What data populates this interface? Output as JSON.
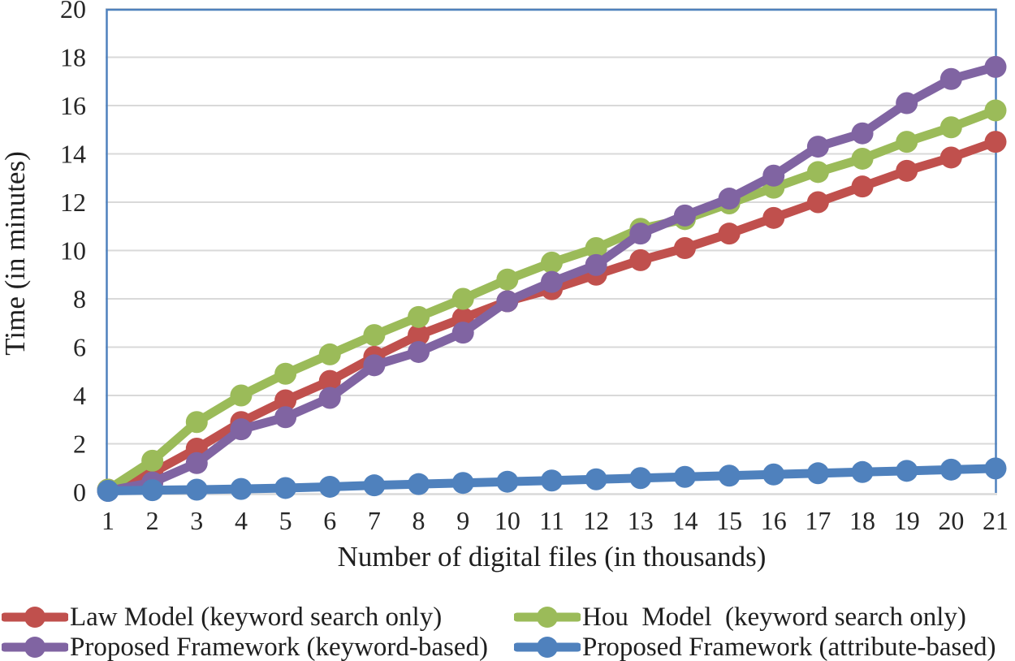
{
  "chart_data": {
    "type": "line",
    "title": "",
    "xlabel": "Number of digital files (in thousands)",
    "ylabel": "Time (in minutes)",
    "x": [
      1,
      2,
      3,
      4,
      5,
      6,
      7,
      8,
      9,
      10,
      11,
      12,
      13,
      14,
      15,
      16,
      17,
      18,
      19,
      20,
      21
    ],
    "ylim": [
      0,
      20
    ],
    "ytick_step": 2,
    "grid": true,
    "legend_position": "bottom",
    "series": [
      {
        "name": "Law Model (keyword search only)",
        "color": "#C0504D",
        "values": [
          0.1,
          0.8,
          1.8,
          2.9,
          3.8,
          4.6,
          5.6,
          6.5,
          7.2,
          7.9,
          8.4,
          9.0,
          9.6,
          10.1,
          10.7,
          11.35,
          12.0,
          12.65,
          13.3,
          13.85,
          14.5
        ]
      },
      {
        "name": "Hou  Model  (keyword search only)",
        "color": "#9BBB59",
        "values": [
          0.1,
          1.3,
          2.9,
          4.0,
          4.9,
          5.7,
          6.5,
          7.25,
          8.0,
          8.8,
          9.5,
          10.1,
          10.9,
          11.3,
          11.95,
          12.6,
          13.25,
          13.8,
          14.5,
          15.1,
          15.8
        ]
      },
      {
        "name": "Proposed Framework (keyword-based)",
        "color": "#8064A2",
        "values": [
          0.05,
          0.4,
          1.2,
          2.6,
          3.1,
          3.9,
          5.25,
          5.8,
          6.6,
          7.9,
          8.7,
          9.4,
          10.7,
          11.45,
          12.15,
          13.1,
          14.3,
          14.85,
          16.1,
          17.1,
          17.6
        ]
      },
      {
        "name": "Proposed Framework (attribute-based)",
        "color": "#4F81BD",
        "values": [
          0.05,
          0.08,
          0.1,
          0.13,
          0.17,
          0.22,
          0.28,
          0.33,
          0.38,
          0.43,
          0.48,
          0.53,
          0.58,
          0.63,
          0.68,
          0.73,
          0.78,
          0.83,
          0.88,
          0.93,
          0.98
        ]
      }
    ]
  },
  "colors": {
    "plot_border": "#4F81BD",
    "gridline": "#D9D9D9",
    "axis_text": "#262626"
  }
}
